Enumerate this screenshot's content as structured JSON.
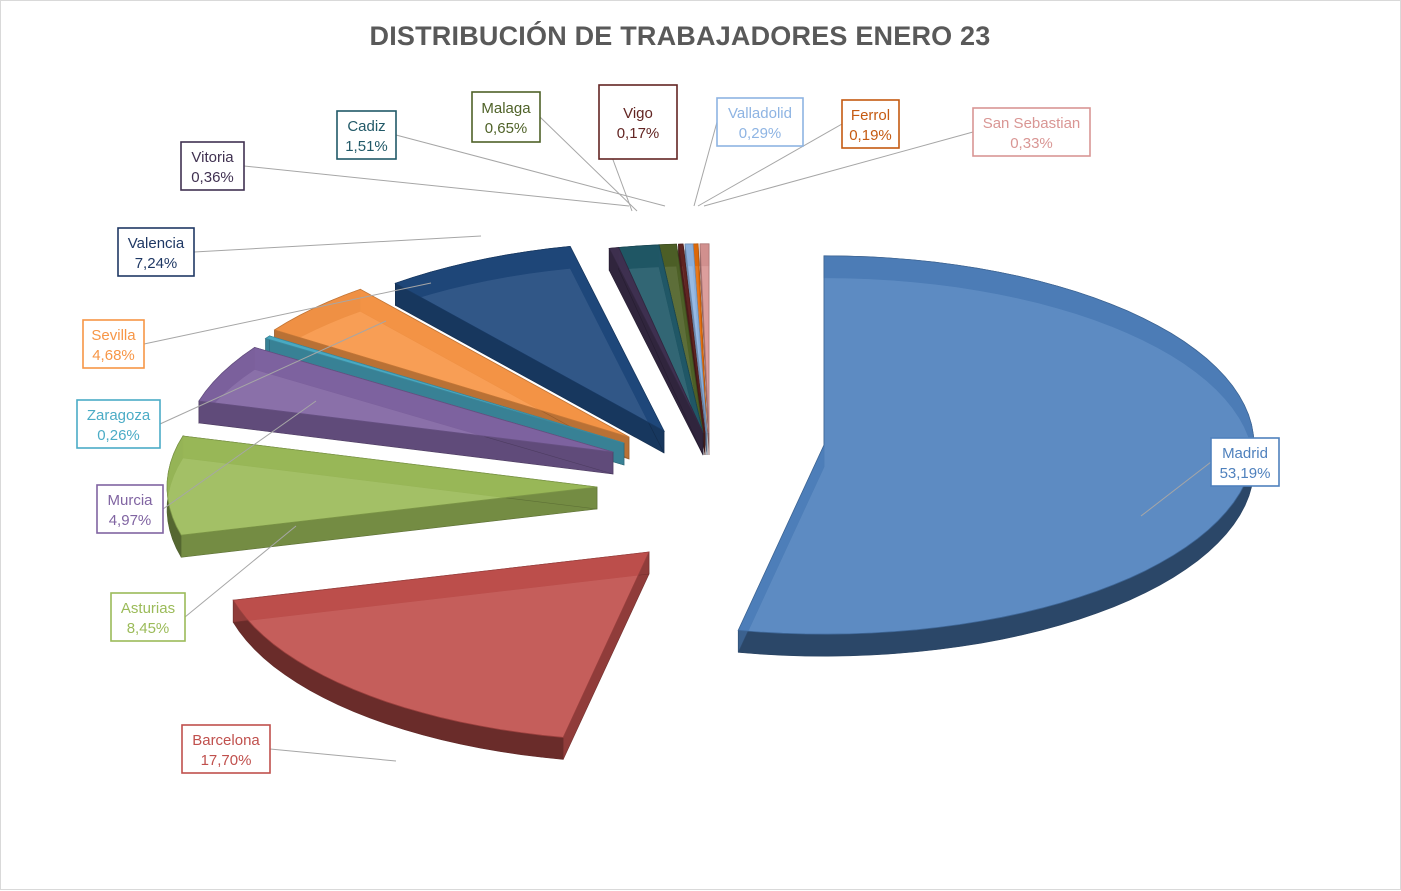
{
  "chart_data": {
    "type": "pie",
    "title": "DISTRIBUCIÓN DE TRABAJADORES ENERO 23",
    "categories": [
      "Madrid",
      "Barcelona",
      "Asturias",
      "Murcia",
      "Zaragoza",
      "Sevilla",
      "Valencia",
      "Vitoria",
      "Cadiz",
      "Malaga",
      "Vigo",
      "Valladolid",
      "Ferrol",
      "San Sebastian"
    ],
    "values": [
      53.19,
      17.7,
      8.45,
      4.97,
      0.26,
      4.68,
      7.24,
      0.36,
      1.51,
      0.65,
      0.17,
      0.29,
      0.19,
      0.33
    ],
    "value_labels": [
      "53,19%",
      "17,70%",
      "8,45%",
      "4,97%",
      "0,26%",
      "4,68%",
      "7,24%",
      "0,36%",
      "1,51%",
      "0,65%",
      "0,17%",
      "0,29%",
      "0,19%",
      "0,33%"
    ],
    "colors": [
      "#4F81BD",
      "#C0504D",
      "#9BBB59",
      "#8064A2",
      "#4BACC6",
      "#F79646",
      "#1F497D",
      "#403151",
      "#215968",
      "#4F6228",
      "#632523",
      "#8EB4E3",
      "#E46C0A",
      "#D99694"
    ],
    "label_colors": [
      "#4F81BD",
      "#C0504D",
      "#9BBB59",
      "#8064A2",
      "#4BACC6",
      "#F79646",
      "#1F3864",
      "#403151",
      "#215968",
      "#4F6228",
      "#632523",
      "#8EB4E3",
      "#C55A11",
      "#D99694"
    ],
    "style": "3d-exploded",
    "legend": "none",
    "data_labels": "category-and-percent-with-leader-lines"
  }
}
